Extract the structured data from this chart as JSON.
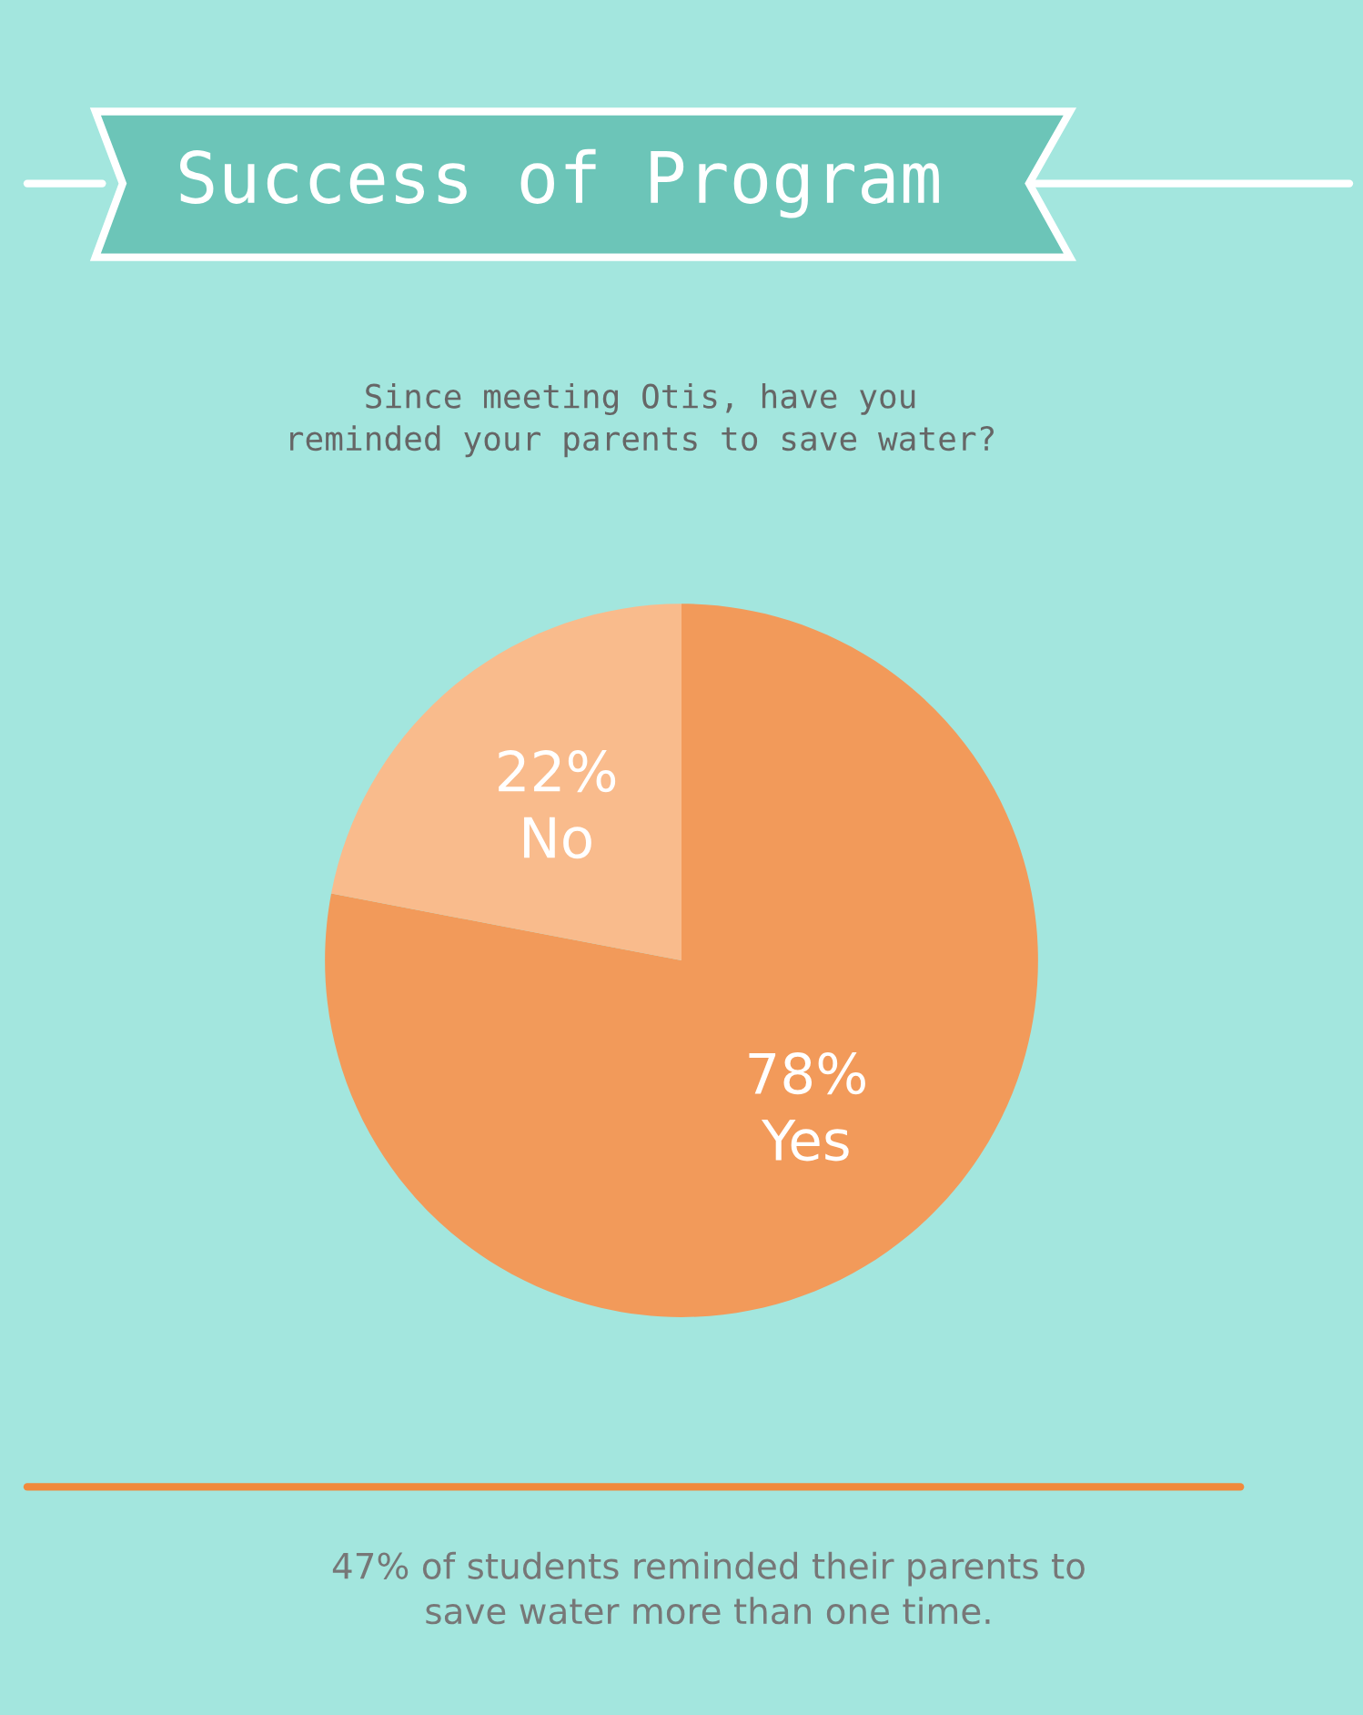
{
  "chart_data": {
    "type": "pie",
    "title": "Success of Program",
    "subtitle": "Since meeting Otis, have you\nreminded your parents to save water?",
    "categories": [
      "Yes",
      "No"
    ],
    "values": [
      78,
      22
    ],
    "value_labels": [
      "78%",
      "22%"
    ],
    "colors": [
      "#f29a5a",
      "#f9bb8c"
    ],
    "annotations": [
      "47% of students reminded their parents to\nsave water more than one time."
    ],
    "legend": false
  }
}
